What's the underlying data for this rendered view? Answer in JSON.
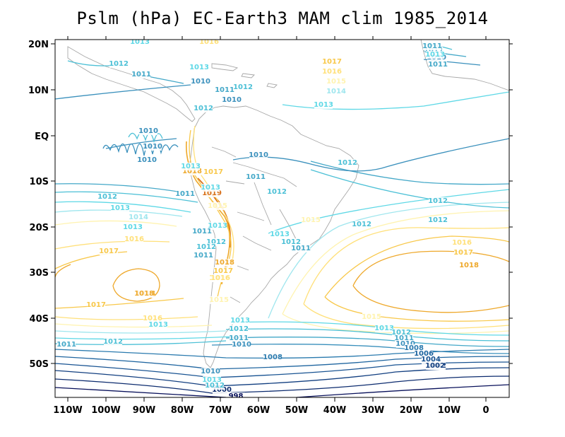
{
  "title": "Pslm (hPa) EC-Earth3 MAM clim 1985_2014",
  "axes": {
    "lon_ticks": [
      "110W",
      "100W",
      "90W",
      "80W",
      "70W",
      "60W",
      "50W",
      "40W",
      "30W",
      "20W",
      "10W",
      "0"
    ],
    "lat_ticks": [
      "20N",
      "10N",
      "EQ",
      "10S",
      "20S",
      "30S",
      "40S",
      "50S"
    ]
  },
  "colors": {
    "998": "#08105a",
    "1000": "#0c2b6e",
    "1002": "#123f80",
    "1004": "#185392",
    "1006": "#2066a0",
    "1008": "#2a7aae",
    "1010": "#3a90bc",
    "1011": "#44a8c8",
    "1012": "#4cc0d6",
    "1013": "#5ed8e6",
    "1014": "#9fe6ee",
    "1015": "#fff3b0",
    "1016": "#ffe07a",
    "1017": "#f8c84a",
    "1018": "#eea82a",
    "1019": "#d8701a",
    "coast": "#a8a8a8"
  },
  "contour_labels": [
    {
      "text": "1013",
      "level": "1013"
    },
    {
      "text": "1016",
      "level": "1016"
    },
    {
      "text": "1012",
      "level": "1012"
    },
    {
      "text": "1011",
      "level": "1011"
    },
    {
      "text": "1010",
      "level": "1010"
    },
    {
      "text": "1013",
      "level": "1013"
    },
    {
      "text": "1012",
      "level": "1012"
    },
    {
      "text": "1011",
      "level": "1011"
    },
    {
      "text": "1010",
      "level": "1010"
    },
    {
      "text": "1012",
      "level": "1012"
    },
    {
      "text": "1011",
      "level": "1011"
    },
    {
      "text": "1010",
      "level": "1010"
    },
    {
      "text": "1017",
      "level": "1017"
    },
    {
      "text": "1016",
      "level": "1016"
    },
    {
      "text": "1015",
      "level": "1015"
    },
    {
      "text": "1014",
      "level": "1014"
    },
    {
      "text": "1013",
      "level": "1013"
    },
    {
      "text": "1010",
      "level": "1010"
    },
    {
      "text": "1010",
      "level": "1010"
    },
    {
      "text": "1010",
      "level": "1010"
    },
    {
      "text": "1010",
      "level": "1010"
    },
    {
      "text": "1012",
      "level": "1012"
    },
    {
      "text": "1011",
      "level": "1011"
    },
    {
      "text": "1012",
      "level": "1012"
    },
    {
      "text": "1011",
      "level": "1011"
    },
    {
      "text": "1012",
      "level": "1012"
    },
    {
      "text": "1012",
      "level": "1012"
    },
    {
      "text": "1013",
      "level": "1013"
    },
    {
      "text": "1016",
      "level": "1016"
    },
    {
      "text": "1017",
      "level": "1017"
    },
    {
      "text": "1018",
      "level": "1018"
    },
    {
      "text": "1017",
      "level": "1017"
    },
    {
      "text": "1018",
      "level": "1018"
    },
    {
      "text": "1013",
      "level": "1013"
    },
    {
      "text": "1019",
      "level": "1019"
    },
    {
      "text": "1013",
      "level": "1013"
    },
    {
      "text": "1015",
      "level": "1015"
    },
    {
      "text": "1012",
      "level": "1012"
    },
    {
      "text": "1018",
      "level": "1018"
    },
    {
      "text": "1017",
      "level": "1017"
    },
    {
      "text": "1016",
      "level": "1016"
    },
    {
      "text": "1015",
      "level": "1015"
    },
    {
      "text": "1012",
      "level": "1012"
    },
    {
      "text": "1012",
      "level": "1012"
    },
    {
      "text": "1013",
      "level": "1013"
    },
    {
      "text": "1014",
      "level": "1014"
    },
    {
      "text": "1016",
      "level": "1016"
    },
    {
      "text": "1017",
      "level": "1017"
    },
    {
      "text": "1018",
      "level": "1018"
    },
    {
      "text": "1015",
      "level": "1015"
    },
    {
      "text": "1013",
      "level": "1013"
    },
    {
      "text": "1012",
      "level": "1012"
    },
    {
      "text": "1011",
      "level": "1011"
    },
    {
      "text": "1010",
      "level": "1010"
    },
    {
      "text": "1008",
      "level": "1008"
    },
    {
      "text": "1006",
      "level": "1006"
    },
    {
      "text": "1004",
      "level": "1004"
    },
    {
      "text": "1002",
      "level": "1002"
    },
    {
      "text": "1000",
      "level": "1000"
    },
    {
      "text": "998",
      "level": "998"
    },
    {
      "text": "1013",
      "level": "1013"
    },
    {
      "text": "1012",
      "level": "1012"
    },
    {
      "text": "1011",
      "level": "1011"
    },
    {
      "text": "1010",
      "level": "1010"
    },
    {
      "text": "1008",
      "level": "1008"
    },
    {
      "text": "1006",
      "level": "1006"
    },
    {
      "text": "1004",
      "level": "1004"
    },
    {
      "text": "1002",
      "level": "1002"
    },
    {
      "text": "1012",
      "level": "1012"
    },
    {
      "text": "1011",
      "level": "1011"
    },
    {
      "text": "1015",
      "level": "1015"
    },
    {
      "text": "1016",
      "level": "1016"
    },
    {
      "text": "1017",
      "level": "1017"
    },
    {
      "text": "1018",
      "level": "1018"
    },
    {
      "text": "1013",
      "level": "1013"
    },
    {
      "text": "1015",
      "level": "1015"
    },
    {
      "text": "1017",
      "level": "1017"
    },
    {
      "text": "1016",
      "level": "1016"
    },
    {
      "text": "1013",
      "level": "1013"
    },
    {
      "text": "1012",
      "level": "1012"
    },
    {
      "text": "1011",
      "level": "1011"
    },
    {
      "text": "1012",
      "level": "1012"
    },
    {
      "text": "1013",
      "level": "1013"
    },
    {
      "text": "1011",
      "level": "1011"
    },
    {
      "text": "1012",
      "level": "1012"
    },
    {
      "text": "1011",
      "level": "1011"
    },
    {
      "text": "1010",
      "level": "1010"
    },
    {
      "text": "1013",
      "level": "1013"
    },
    {
      "text": "1012",
      "level": "1012"
    },
    {
      "text": "1011",
      "level": "1011"
    },
    {
      "text": "1013",
      "level": "1013"
    },
    {
      "text": "1011",
      "level": "1011"
    }
  ]
}
